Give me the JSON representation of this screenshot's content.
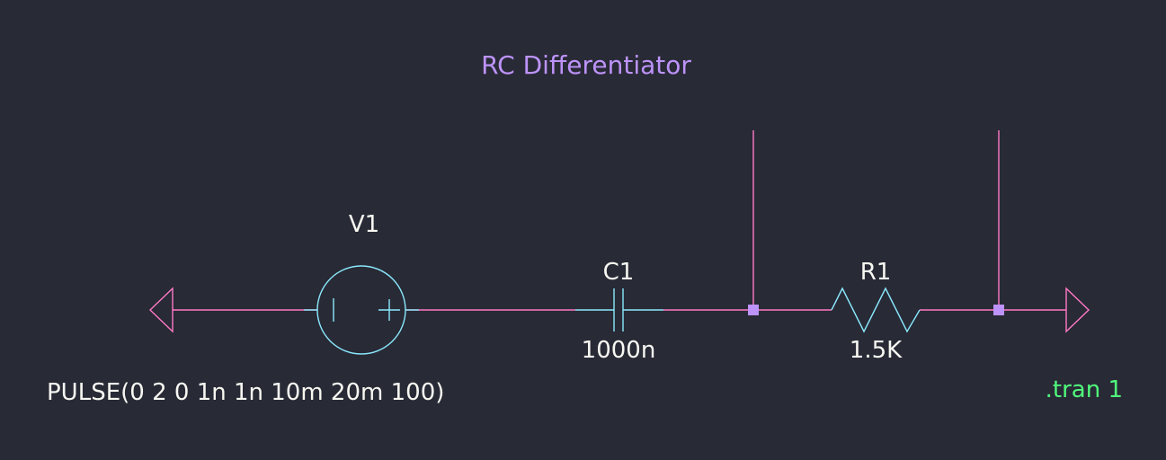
{
  "title": "RC Differentiator",
  "components": {
    "source": {
      "ref": "V1",
      "value": "PULSE(0 2 0 1n 1n 10m 20m 100)",
      "plus_symbol": "+",
      "minus_symbol": "|"
    },
    "capacitor": {
      "ref": "C1",
      "value": "1000n"
    },
    "resistor": {
      "ref": "R1",
      "value": "1.5K"
    }
  },
  "directive": ".tran 1",
  "colors": {
    "background": "#282a36",
    "wire": "#ff79c6",
    "component": "#8be9fd",
    "title": "#bd93f9",
    "junction": "#bd93f9",
    "label": "#f8f8f2",
    "directive": "#50fa7b"
  }
}
